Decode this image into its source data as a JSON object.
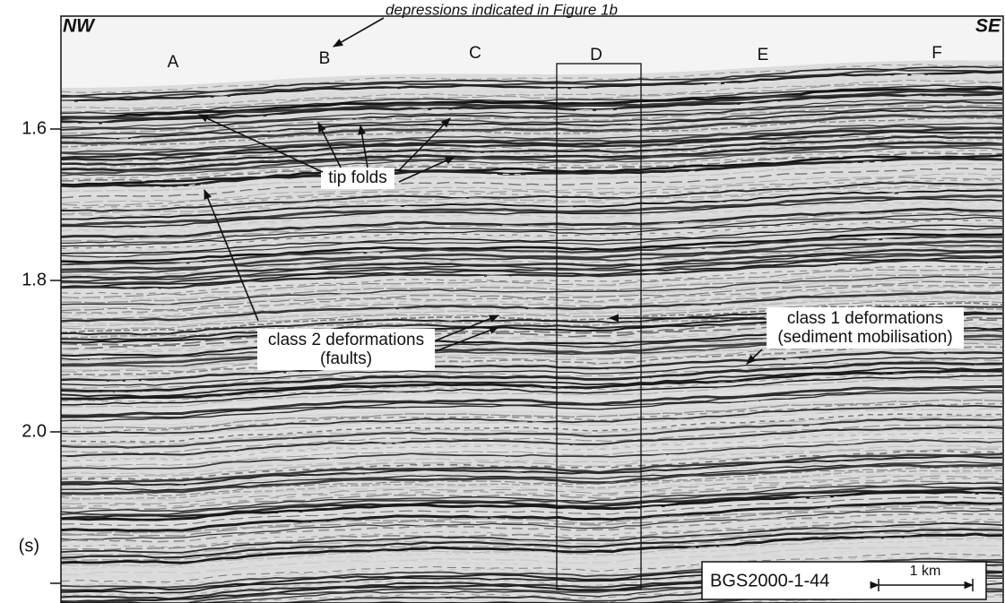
{
  "header": {
    "left": "NW",
    "right": "SE",
    "note": "depressions indicated in Figure 1b"
  },
  "depressions": [
    "A",
    "B",
    "C",
    "D",
    "E",
    "F"
  ],
  "axis": {
    "ticks": [
      "1.6",
      "1.8",
      "2.0"
    ],
    "unit": "(s)"
  },
  "annotations": {
    "tip_folds": "tip folds",
    "class2": [
      "class 2 deformations",
      "(faults)"
    ],
    "class1": [
      "class 1 deformations",
      "(sediment mobilisation)"
    ]
  },
  "legend": {
    "line": "BGS2000-1-44",
    "scale": "1 km"
  }
}
